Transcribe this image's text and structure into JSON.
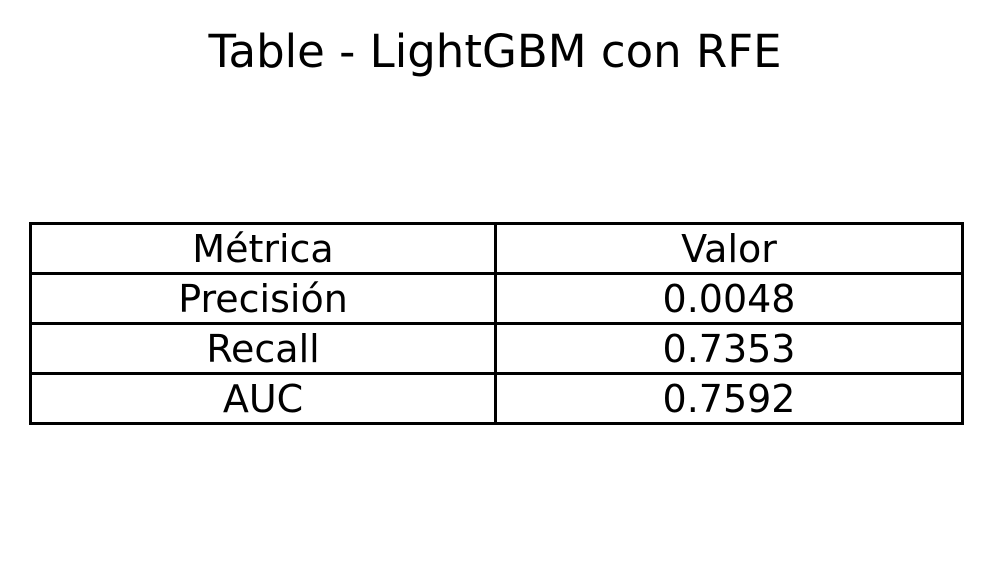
{
  "chart_data": {
    "type": "table",
    "title": "Table - LightGBM con RFE",
    "columns": [
      "Métrica",
      "Valor"
    ],
    "rows": [
      [
        "Precisión",
        "0.0048"
      ],
      [
        "Recall",
        "0.7353"
      ],
      [
        "AUC",
        "0.7592"
      ]
    ]
  }
}
